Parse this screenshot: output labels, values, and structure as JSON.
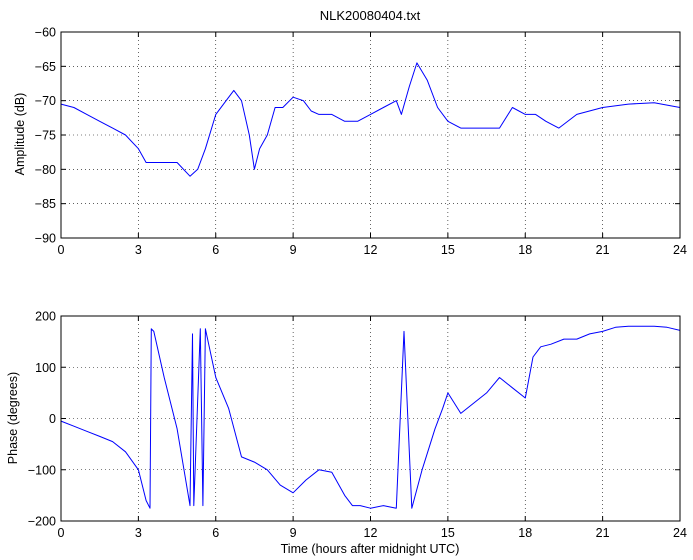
{
  "figure": {
    "background": "#ffffff",
    "line_color": "#0000ff",
    "axis_color": "#000000"
  },
  "chart_data": [
    {
      "type": "line",
      "title": "NLK20080404.txt",
      "xlabel": "",
      "ylabel": "Amplitude (dB)",
      "xlim": [
        0,
        24
      ],
      "ylim": [
        -90,
        -60
      ],
      "xticks": [
        0,
        3,
        6,
        9,
        12,
        15,
        18,
        21,
        24
      ],
      "yticks": [
        -90,
        -85,
        -80,
        -75,
        -70,
        -65,
        -60
      ],
      "grid": true,
      "series": [
        {
          "color": "#0000ff",
          "x": [
            0,
            0.5,
            1.0,
            1.5,
            2.0,
            2.5,
            3.0,
            3.3,
            4.0,
            4.5,
            5.0,
            5.3,
            5.6,
            6.0,
            6.4,
            6.7,
            7.0,
            7.3,
            7.5,
            7.7,
            8.0,
            8.3,
            8.6,
            9.0,
            9.4,
            9.7,
            10.0,
            10.5,
            11.0,
            11.5,
            12.0,
            12.5,
            13.0,
            13.2,
            13.5,
            13.8,
            14.2,
            14.6,
            15.0,
            15.5,
            16.0,
            16.5,
            17.0,
            17.5,
            18.0,
            18.4,
            18.8,
            19.3,
            20.0,
            21.0,
            22.0,
            23.0,
            24.0
          ],
          "y": [
            -70.5,
            -71,
            -72,
            -73,
            -74,
            -75,
            -77,
            -79,
            -79,
            -79,
            -81,
            -80,
            -77,
            -72,
            -70,
            -68.5,
            -70,
            -75,
            -80,
            -77,
            -75,
            -71,
            -71,
            -69.5,
            -70,
            -71.5,
            -72,
            -72,
            -73,
            -73,
            -72,
            -71,
            -70,
            -72,
            -68,
            -64.5,
            -67,
            -71,
            -73,
            -74,
            -74,
            -74,
            -74,
            -71,
            -72,
            -72,
            -73,
            -74,
            -72,
            -71,
            -70.5,
            -70.3,
            -71
          ]
        }
      ]
    },
    {
      "type": "line",
      "title": "",
      "xlabel": "Time (hours after midnight UTC)",
      "ylabel": "Phase (degrees)",
      "xlim": [
        0,
        24
      ],
      "ylim": [
        -200,
        200
      ],
      "xticks": [
        0,
        3,
        6,
        9,
        12,
        15,
        18,
        21,
        24
      ],
      "yticks": [
        -200,
        -100,
        0,
        100,
        200
      ],
      "grid": true,
      "series": [
        {
          "color": "#0000ff",
          "x": [
            0,
            0.5,
            1.0,
            1.5,
            2.0,
            2.5,
            3.0,
            3.3,
            3.45,
            3.5,
            3.6,
            4.0,
            4.5,
            5.0,
            5.1,
            5.15,
            5.4,
            5.5,
            5.6,
            6.0,
            6.5,
            7.0,
            7.5,
            8.0,
            8.5,
            9.0,
            9.5,
            10.0,
            10.5,
            11.0,
            11.3,
            11.6,
            12.0,
            12.5,
            13.0,
            13.3,
            13.6,
            14.0,
            14.5,
            14.8,
            15.0,
            15.5,
            16.0,
            16.5,
            17.0,
            17.5,
            18.0,
            18.3,
            18.6,
            19.0,
            19.5,
            20.0,
            20.5,
            21.0,
            21.5,
            22.0,
            22.5,
            23.0,
            23.5,
            24.0
          ],
          "y": [
            -5,
            -15,
            -25,
            -35,
            -45,
            -65,
            -100,
            -160,
            -175,
            175,
            170,
            80,
            -20,
            -170,
            165,
            -170,
            175,
            -170,
            175,
            80,
            20,
            -75,
            -85,
            -100,
            -130,
            -145,
            -120,
            -100,
            -105,
            -150,
            -170,
            -170,
            -175,
            -170,
            -175,
            170,
            -175,
            -100,
            -20,
            20,
            50,
            10,
            30,
            50,
            80,
            60,
            40,
            120,
            140,
            145,
            155,
            155,
            165,
            170,
            178,
            180,
            180,
            180,
            178,
            172
          ]
        }
      ]
    }
  ]
}
